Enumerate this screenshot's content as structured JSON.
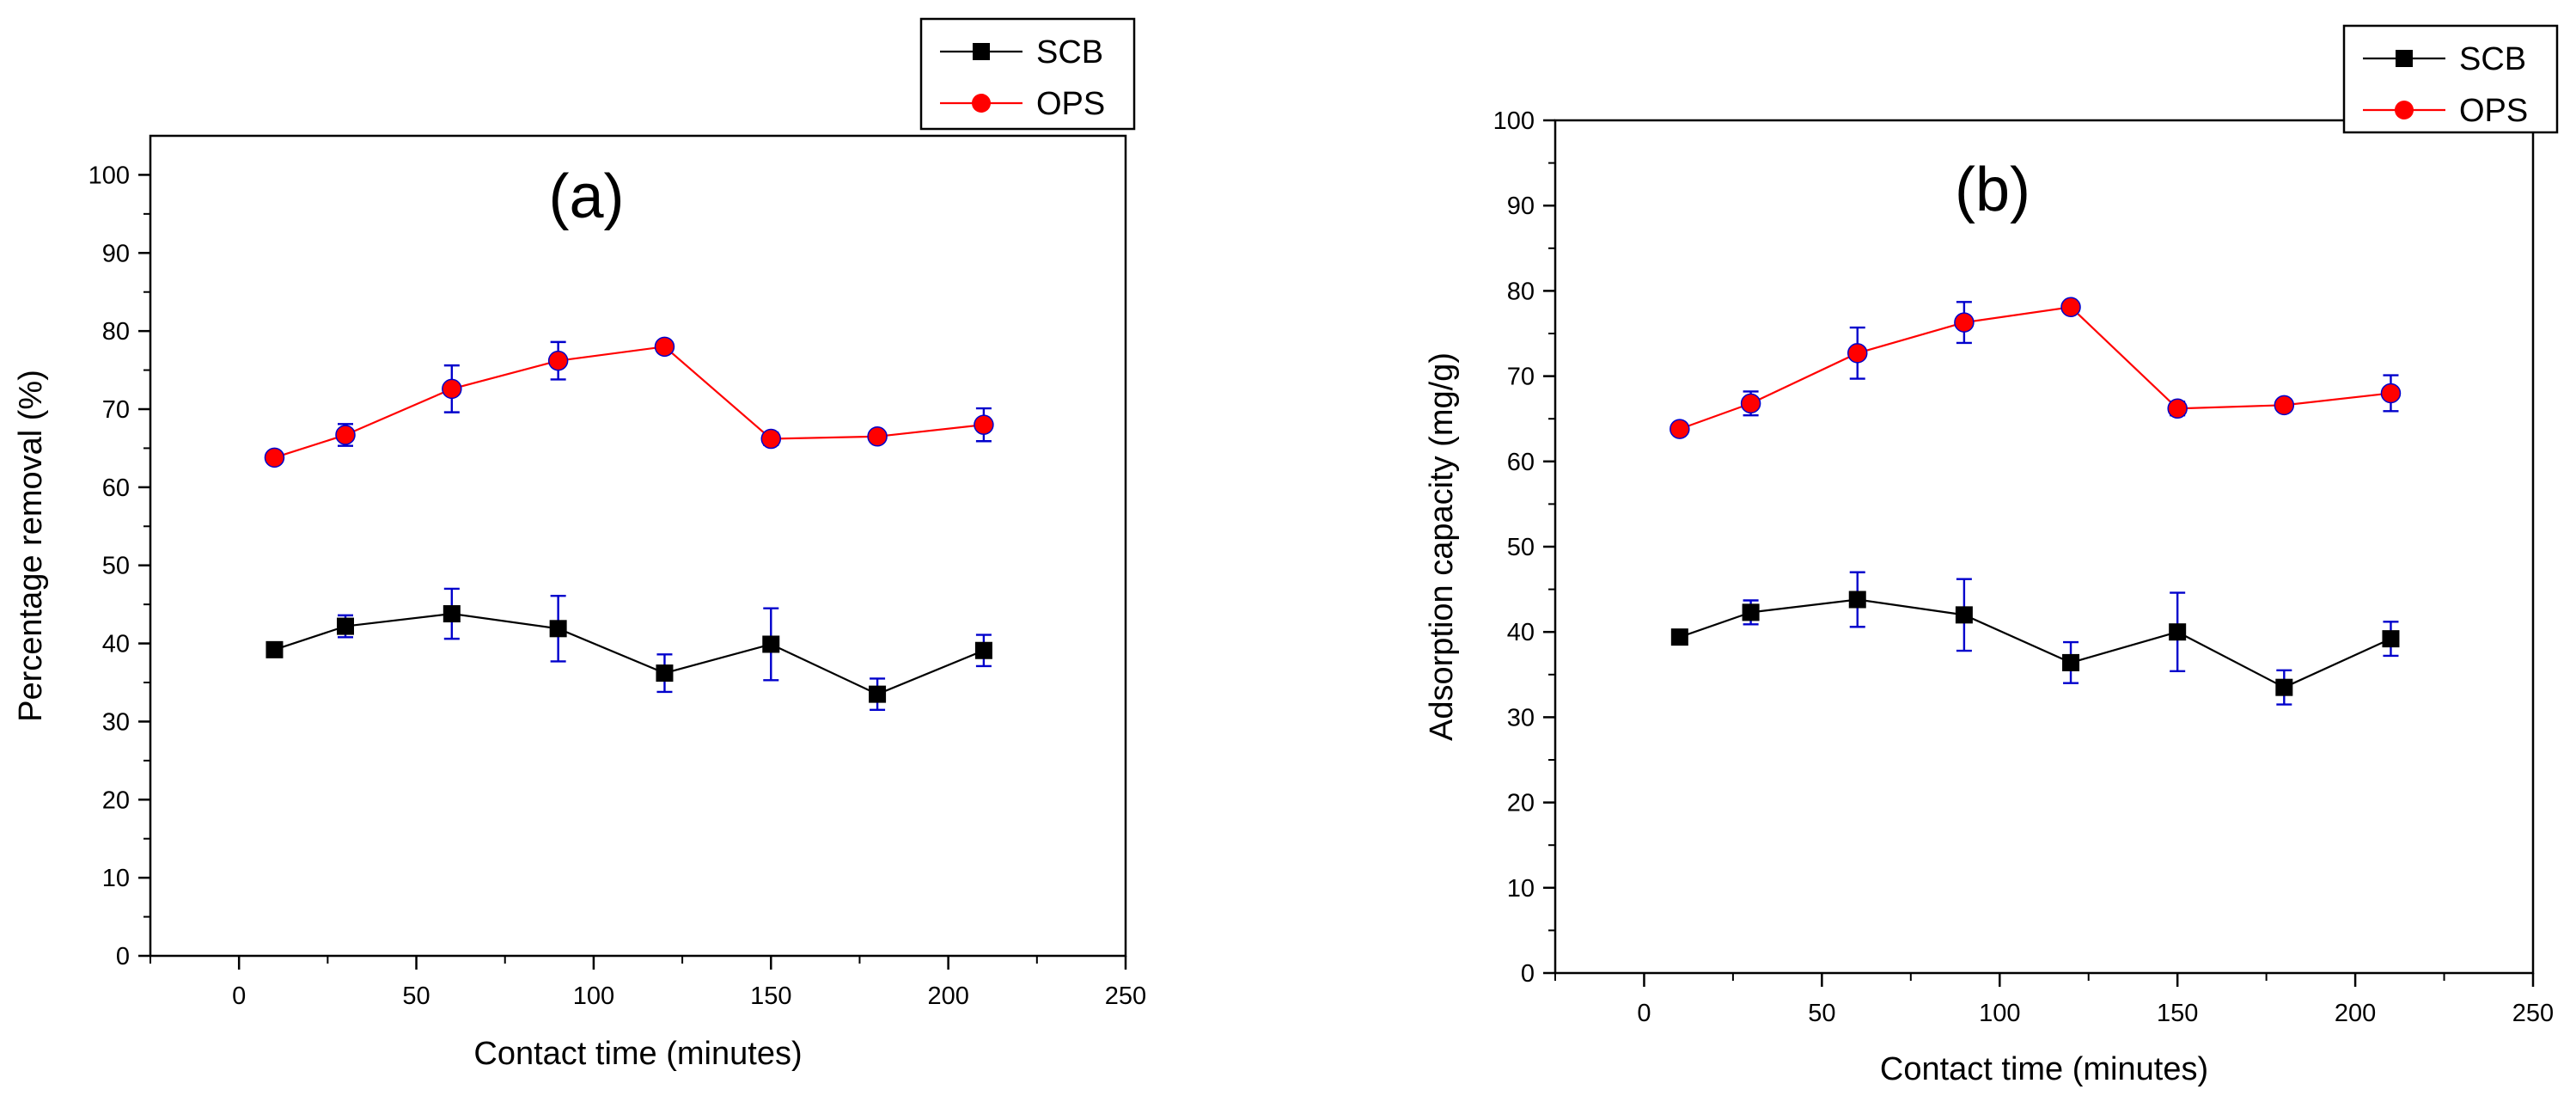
{
  "chart_data": [
    {
      "type": "line",
      "panel_label": "(a)",
      "xlabel": "Contact time (minutes)",
      "ylabel": "Percentage removal (%)",
      "xlim": [
        -25,
        250
      ],
      "ylim": [
        0,
        105
      ],
      "xticks": [
        0,
        50,
        100,
        150,
        200,
        250
      ],
      "yticks": [
        0,
        10,
        20,
        30,
        40,
        50,
        60,
        70,
        80,
        90,
        100
      ],
      "x": [
        10,
        30,
        60,
        90,
        120,
        150,
        180,
        210
      ],
      "series": [
        {
          "name": "SCB",
          "color": "#000000",
          "marker": "square",
          "values": [
            39.2,
            42.2,
            43.8,
            41.9,
            36.2,
            39.9,
            33.5,
            39.1
          ],
          "errors": [
            0.6,
            1.4,
            3.2,
            4.2,
            2.4,
            4.6,
            2.0,
            2.0
          ]
        },
        {
          "name": "OPS",
          "color": "#ff0000",
          "marker": "circle",
          "values": [
            63.8,
            66.7,
            72.6,
            76.2,
            78.0,
            66.2,
            66.5,
            68.0
          ],
          "errors": [
            0.5,
            1.4,
            3.0,
            2.4,
            0.6,
            0.8,
            0.5,
            2.1
          ]
        }
      ],
      "errorbar_color": "#0000cc",
      "legend_position": "top-right"
    },
    {
      "type": "line",
      "panel_label": "(b)",
      "xlabel": "Contact time (minutes)",
      "ylabel": "Adsorption capacity (mg/g)",
      "xlim": [
        -25,
        250
      ],
      "ylim": [
        0,
        100
      ],
      "xticks": [
        0,
        50,
        100,
        150,
        200,
        250
      ],
      "yticks": [
        0,
        10,
        20,
        30,
        40,
        50,
        60,
        70,
        80,
        90,
        100
      ],
      "x": [
        10,
        30,
        60,
        90,
        120,
        150,
        180,
        210
      ],
      "series": [
        {
          "name": "SCB",
          "color": "#000000",
          "marker": "square",
          "values": [
            39.4,
            42.3,
            43.8,
            42.0,
            36.4,
            40.0,
            33.5,
            39.2
          ],
          "errors": [
            0.6,
            1.4,
            3.2,
            4.2,
            2.4,
            4.6,
            2.0,
            2.0
          ]
        },
        {
          "name": "OPS",
          "color": "#ff0000",
          "marker": "circle",
          "values": [
            63.8,
            66.8,
            72.7,
            76.3,
            78.1,
            66.2,
            66.6,
            68.0
          ],
          "errors": [
            0.5,
            1.4,
            3.0,
            2.4,
            0.6,
            0.8,
            0.5,
            2.1
          ]
        }
      ],
      "errorbar_color": "#0000cc",
      "legend_position": "top-right"
    }
  ]
}
